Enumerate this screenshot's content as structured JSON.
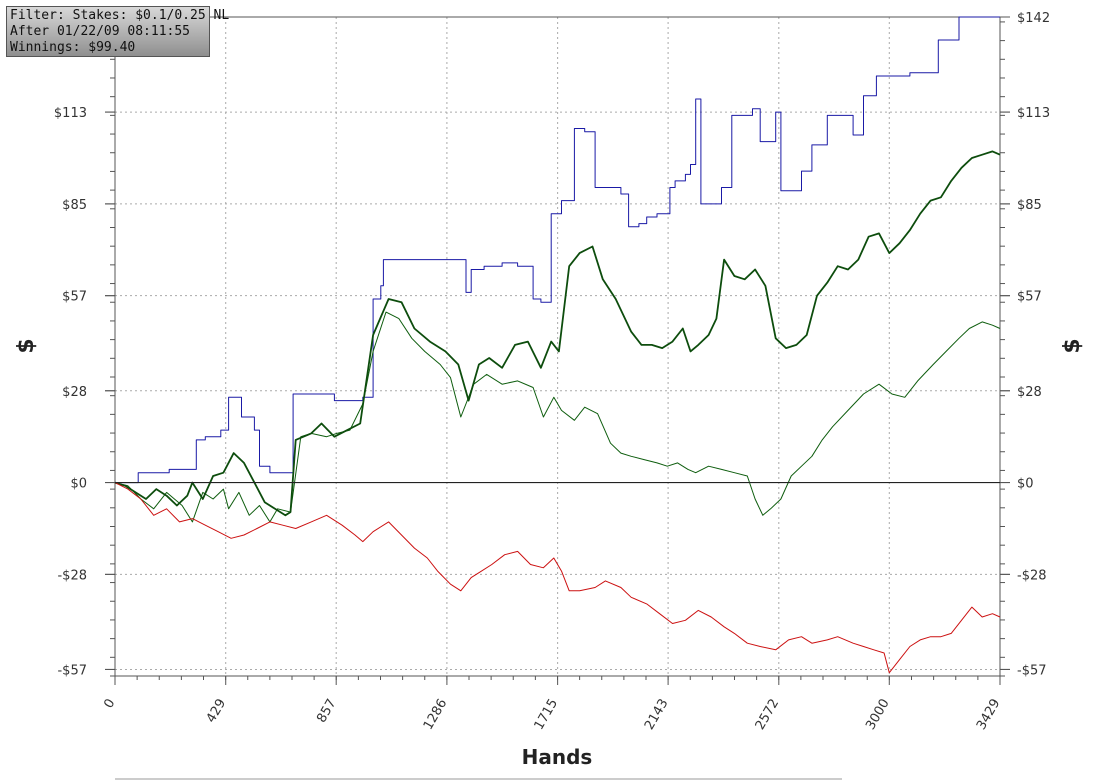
{
  "filter_box": {
    "line1": "Filter: Stakes: $0.1/0.25 NL",
    "line2": "After 01/22/09 08:11:55",
    "line3": "Winnings: $99.40"
  },
  "chart_data": {
    "type": "line",
    "xlabel": "Hands",
    "ylabel": "$",
    "xlim": [
      0,
      3429
    ],
    "ylim": [
      -59,
      142
    ],
    "x_ticks": [
      0,
      429,
      857,
      1286,
      1715,
      2143,
      2572,
      3000,
      3429
    ],
    "y_ticks": [
      -57,
      -28,
      0,
      28,
      57,
      85,
      113
    ],
    "y_tick_labels": [
      "-$57",
      "-$28",
      "$0",
      "$28",
      "$57",
      "$85",
      "$113"
    ],
    "y_ticks_right": [
      -57,
      -28,
      0,
      28,
      57,
      85,
      113,
      142
    ],
    "y_tick_labels_right": [
      "-$57",
      "-$28",
      "$0",
      "$28",
      "$57",
      "$85",
      "$113",
      "$142"
    ],
    "grid": true,
    "series": [
      {
        "color": "#1a1aa6",
        "step": true,
        "points": [
          [
            0,
            0
          ],
          [
            80,
            0
          ],
          [
            90,
            3
          ],
          [
            210,
            4
          ],
          [
            310,
            4
          ],
          [
            315,
            13
          ],
          [
            350,
            14
          ],
          [
            410,
            16
          ],
          [
            440,
            26
          ],
          [
            490,
            20
          ],
          [
            540,
            16
          ],
          [
            560,
            5
          ],
          [
            600,
            3
          ],
          [
            680,
            3
          ],
          [
            690,
            27
          ],
          [
            850,
            25
          ],
          [
            870,
            25
          ],
          [
            960,
            26
          ],
          [
            1000,
            56
          ],
          [
            1030,
            60
          ],
          [
            1040,
            68
          ],
          [
            1200,
            68
          ],
          [
            1320,
            68
          ],
          [
            1360,
            58
          ],
          [
            1380,
            65
          ],
          [
            1430,
            66
          ],
          [
            1500,
            67
          ],
          [
            1560,
            66
          ],
          [
            1620,
            56
          ],
          [
            1650,
            55
          ],
          [
            1690,
            82
          ],
          [
            1730,
            86
          ],
          [
            1780,
            108
          ],
          [
            1820,
            107
          ],
          [
            1860,
            90
          ],
          [
            1960,
            88
          ],
          [
            1990,
            78
          ],
          [
            2030,
            79
          ],
          [
            2060,
            81
          ],
          [
            2100,
            82
          ],
          [
            2150,
            90
          ],
          [
            2170,
            92
          ],
          [
            2210,
            94
          ],
          [
            2230,
            97
          ],
          [
            2250,
            117
          ],
          [
            2270,
            85
          ],
          [
            2350,
            90
          ],
          [
            2390,
            112
          ],
          [
            2470,
            114
          ],
          [
            2500,
            104
          ],
          [
            2560,
            113
          ],
          [
            2580,
            89
          ],
          [
            2660,
            95
          ],
          [
            2700,
            103
          ],
          [
            2760,
            112
          ],
          [
            2860,
            106
          ],
          [
            2900,
            118
          ],
          [
            2950,
            124
          ],
          [
            3080,
            125
          ],
          [
            3190,
            135
          ],
          [
            3270,
            142
          ],
          [
            3429,
            142
          ]
        ]
      },
      {
        "color": "#0e5d0e",
        "step": false,
        "points": [
          [
            0,
            0
          ],
          [
            50,
            -1
          ],
          [
            100,
            -5
          ],
          [
            150,
            -8
          ],
          [
            200,
            -3
          ],
          [
            260,
            -7
          ],
          [
            300,
            -12
          ],
          [
            340,
            -3
          ],
          [
            380,
            -5
          ],
          [
            420,
            -2
          ],
          [
            440,
            -8
          ],
          [
            480,
            -3
          ],
          [
            520,
            -10
          ],
          [
            560,
            -7
          ],
          [
            600,
            -12
          ],
          [
            630,
            -8
          ],
          [
            680,
            -9
          ],
          [
            720,
            14
          ],
          [
            760,
            15
          ],
          [
            820,
            14
          ],
          [
            860,
            15
          ],
          [
            910,
            16
          ],
          [
            960,
            24
          ],
          [
            1000,
            40
          ],
          [
            1050,
            52
          ],
          [
            1100,
            50
          ],
          [
            1150,
            44
          ],
          [
            1200,
            40
          ],
          [
            1260,
            36
          ],
          [
            1300,
            32
          ],
          [
            1340,
            20
          ],
          [
            1390,
            30
          ],
          [
            1440,
            33
          ],
          [
            1500,
            30
          ],
          [
            1560,
            31
          ],
          [
            1620,
            29
          ],
          [
            1660,
            20
          ],
          [
            1700,
            26
          ],
          [
            1730,
            22
          ],
          [
            1780,
            19
          ],
          [
            1820,
            23
          ],
          [
            1870,
            21
          ],
          [
            1920,
            12
          ],
          [
            1960,
            9
          ],
          [
            2000,
            8
          ],
          [
            2050,
            7
          ],
          [
            2100,
            6
          ],
          [
            2140,
            5
          ],
          [
            2180,
            6
          ],
          [
            2220,
            4
          ],
          [
            2250,
            3
          ],
          [
            2300,
            5
          ],
          [
            2350,
            4
          ],
          [
            2400,
            3
          ],
          [
            2450,
            2
          ],
          [
            2480,
            -5
          ],
          [
            2510,
            -10
          ],
          [
            2540,
            -8
          ],
          [
            2580,
            -5
          ],
          [
            2620,
            2
          ],
          [
            2660,
            5
          ],
          [
            2700,
            8
          ],
          [
            2740,
            13
          ],
          [
            2780,
            17
          ],
          [
            2840,
            22
          ],
          [
            2900,
            27
          ],
          [
            2960,
            30
          ],
          [
            3010,
            27
          ],
          [
            3060,
            26
          ],
          [
            3110,
            31
          ],
          [
            3170,
            36
          ],
          [
            3220,
            40
          ],
          [
            3270,
            44
          ],
          [
            3310,
            47
          ],
          [
            3360,
            49
          ],
          [
            3400,
            48
          ],
          [
            3429,
            47
          ]
        ]
      },
      {
        "color": "#0d4d0d",
        "step": false,
        "points": [
          [
            0,
            0
          ],
          [
            40,
            -1
          ],
          [
            80,
            -3
          ],
          [
            120,
            -5
          ],
          [
            160,
            -2
          ],
          [
            200,
            -4
          ],
          [
            240,
            -7
          ],
          [
            280,
            -4
          ],
          [
            300,
            0
          ],
          [
            340,
            -5
          ],
          [
            380,
            2
          ],
          [
            420,
            3
          ],
          [
            460,
            9
          ],
          [
            500,
            6
          ],
          [
            540,
            0
          ],
          [
            580,
            -6
          ],
          [
            620,
            -8
          ],
          [
            660,
            -10
          ],
          [
            680,
            -9
          ],
          [
            700,
            13
          ],
          [
            760,
            15
          ],
          [
            800,
            18
          ],
          [
            850,
            14
          ],
          [
            900,
            16
          ],
          [
            950,
            18
          ],
          [
            1000,
            45
          ],
          [
            1060,
            56
          ],
          [
            1110,
            55
          ],
          [
            1160,
            47
          ],
          [
            1220,
            43
          ],
          [
            1280,
            40
          ],
          [
            1330,
            36
          ],
          [
            1370,
            25
          ],
          [
            1410,
            36
          ],
          [
            1450,
            38
          ],
          [
            1500,
            35
          ],
          [
            1550,
            42
          ],
          [
            1600,
            43
          ],
          [
            1650,
            35
          ],
          [
            1690,
            43
          ],
          [
            1720,
            40
          ],
          [
            1760,
            66
          ],
          [
            1800,
            70
          ],
          [
            1850,
            72
          ],
          [
            1890,
            62
          ],
          [
            1940,
            56
          ],
          [
            2000,
            46
          ],
          [
            2040,
            42
          ],
          [
            2080,
            42
          ],
          [
            2120,
            41
          ],
          [
            2160,
            43
          ],
          [
            2200,
            47
          ],
          [
            2230,
            40
          ],
          [
            2260,
            42
          ],
          [
            2300,
            45
          ],
          [
            2330,
            50
          ],
          [
            2360,
            68
          ],
          [
            2400,
            63
          ],
          [
            2440,
            62
          ],
          [
            2480,
            65
          ],
          [
            2520,
            60
          ],
          [
            2560,
            44
          ],
          [
            2600,
            41
          ],
          [
            2640,
            42
          ],
          [
            2680,
            45
          ],
          [
            2720,
            57
          ],
          [
            2760,
            61
          ],
          [
            2800,
            66
          ],
          [
            2840,
            65
          ],
          [
            2880,
            68
          ],
          [
            2920,
            75
          ],
          [
            2960,
            76
          ],
          [
            3000,
            70
          ],
          [
            3040,
            73
          ],
          [
            3080,
            77
          ],
          [
            3120,
            82
          ],
          [
            3160,
            86
          ],
          [
            3200,
            87
          ],
          [
            3240,
            92
          ],
          [
            3280,
            96
          ],
          [
            3320,
            99
          ],
          [
            3360,
            100
          ],
          [
            3400,
            101
          ],
          [
            3429,
            100
          ]
        ]
      },
      {
        "color": "#cc1111",
        "step": false,
        "points": [
          [
            0,
            0
          ],
          [
            50,
            -2
          ],
          [
            100,
            -5
          ],
          [
            150,
            -10
          ],
          [
            200,
            -8
          ],
          [
            250,
            -12
          ],
          [
            300,
            -11
          ],
          [
            350,
            -13
          ],
          [
            400,
            -15
          ],
          [
            450,
            -17
          ],
          [
            500,
            -16
          ],
          [
            550,
            -14
          ],
          [
            600,
            -12
          ],
          [
            650,
            -13
          ],
          [
            700,
            -14
          ],
          [
            760,
            -12
          ],
          [
            820,
            -10
          ],
          [
            880,
            -13
          ],
          [
            930,
            -16
          ],
          [
            960,
            -18
          ],
          [
            1000,
            -15
          ],
          [
            1060,
            -12
          ],
          [
            1110,
            -16
          ],
          [
            1160,
            -20
          ],
          [
            1210,
            -23
          ],
          [
            1250,
            -27
          ],
          [
            1300,
            -31
          ],
          [
            1340,
            -33
          ],
          [
            1380,
            -29
          ],
          [
            1420,
            -27
          ],
          [
            1460,
            -25
          ],
          [
            1510,
            -22
          ],
          [
            1560,
            -21
          ],
          [
            1610,
            -25
          ],
          [
            1660,
            -26
          ],
          [
            1700,
            -23
          ],
          [
            1730,
            -27
          ],
          [
            1760,
            -33
          ],
          [
            1800,
            -33
          ],
          [
            1860,
            -32
          ],
          [
            1900,
            -30
          ],
          [
            1960,
            -32
          ],
          [
            2000,
            -35
          ],
          [
            2060,
            -37
          ],
          [
            2110,
            -40
          ],
          [
            2160,
            -43
          ],
          [
            2210,
            -42
          ],
          [
            2260,
            -39
          ],
          [
            2310,
            -41
          ],
          [
            2360,
            -44
          ],
          [
            2400,
            -46
          ],
          [
            2450,
            -49
          ],
          [
            2500,
            -50
          ],
          [
            2560,
            -51
          ],
          [
            2610,
            -48
          ],
          [
            2660,
            -47
          ],
          [
            2700,
            -49
          ],
          [
            2760,
            -48
          ],
          [
            2800,
            -47
          ],
          [
            2860,
            -49
          ],
          [
            2900,
            -50
          ],
          [
            2940,
            -51
          ],
          [
            2980,
            -52
          ],
          [
            3000,
            -58
          ],
          [
            3040,
            -54
          ],
          [
            3080,
            -50
          ],
          [
            3120,
            -48
          ],
          [
            3160,
            -47
          ],
          [
            3200,
            -47
          ],
          [
            3240,
            -46
          ],
          [
            3280,
            -42
          ],
          [
            3320,
            -38
          ],
          [
            3360,
            -41
          ],
          [
            3400,
            -40
          ],
          [
            3429,
            -41
          ]
        ]
      }
    ]
  }
}
